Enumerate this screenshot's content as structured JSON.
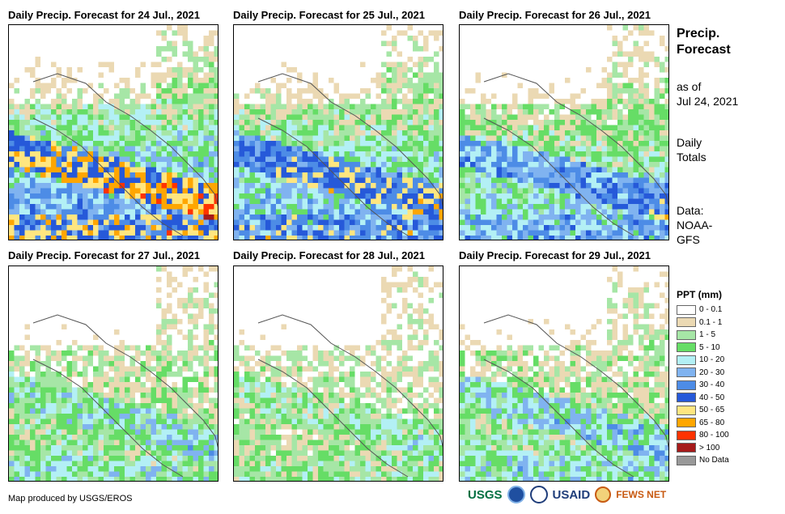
{
  "panels": [
    {
      "title": "Daily Precip. Forecast for 24 Jul., 2021",
      "intensity": 1.0
    },
    {
      "title": "Daily Precip. Forecast for 25 Jul., 2021",
      "intensity": 0.85
    },
    {
      "title": "Daily Precip. Forecast for 26 Jul., 2021",
      "intensity": 0.7
    },
    {
      "title": "Daily Precip. Forecast for 27 Jul., 2021",
      "intensity": 0.45
    },
    {
      "title": "Daily Precip. Forecast for 28 Jul., 2021",
      "intensity": 0.35
    },
    {
      "title": "Daily Precip. Forecast for 29 Jul., 2021",
      "intensity": 0.5
    }
  ],
  "side": {
    "title_line1": "Precip.",
    "title_line2": "Forecast",
    "asof_line1": "as of",
    "asof_line2": "Jul 24, 2021",
    "totals_line1": "Daily",
    "totals_line2": "Totals",
    "data_line1": "Data:",
    "data_line2": "NOAA-",
    "data_line3": "GFS"
  },
  "legend": {
    "title": "PPT (mm)",
    "items": [
      {
        "label": "0 - 0.1",
        "color": "#ffffff"
      },
      {
        "label": "0.1 - 1",
        "color": "#ebd9b3"
      },
      {
        "label": "1 - 5",
        "color": "#a6e6a6"
      },
      {
        "label": "5 - 10",
        "color": "#66dd66"
      },
      {
        "label": "10 - 20",
        "color": "#b3f0f5"
      },
      {
        "label": "20 - 30",
        "color": "#80b3f0"
      },
      {
        "label": "30 - 40",
        "color": "#4d8ce6"
      },
      {
        "label": "40 - 50",
        "color": "#2659d9"
      },
      {
        "label": "50 - 65",
        "color": "#ffe680"
      },
      {
        "label": "65 - 80",
        "color": "#ffa600"
      },
      {
        "label": "80 - 100",
        "color": "#ff3300"
      },
      {
        "label": "> 100",
        "color": "#a61a1a"
      },
      {
        "label": "No Data",
        "color": "#999999"
      }
    ]
  },
  "footer": {
    "credit": "Map produced by USGS/EROS"
  },
  "logos": {
    "usgs": "USGS",
    "usaid": "USAID",
    "fewsnet": "FEWS NET"
  }
}
